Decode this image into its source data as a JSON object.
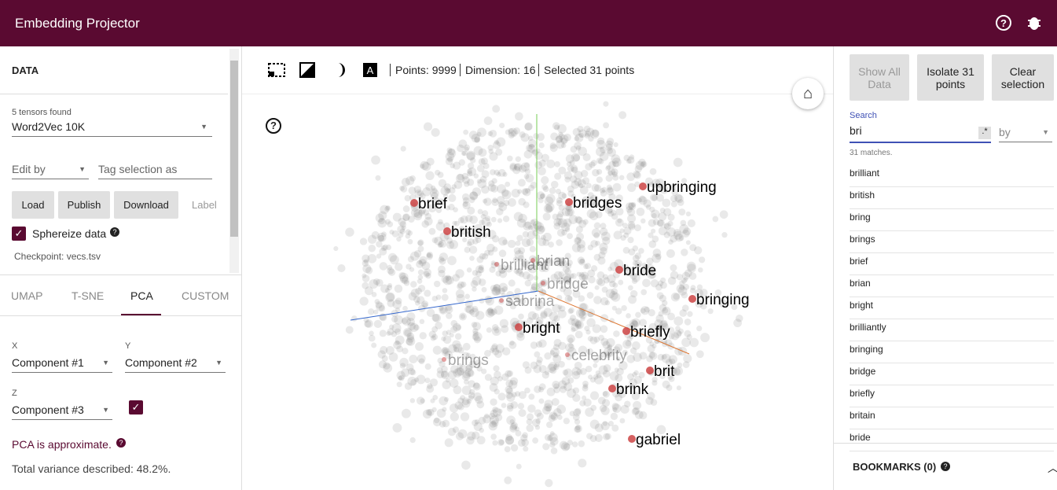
{
  "header": {
    "title": "Embedding Projector"
  },
  "data_panel": {
    "title": "DATA",
    "tensors_found": "5 tensors found",
    "tensor": "Word2Vec 10K",
    "edit_by": "Edit by",
    "tag_selection": "Tag selection as",
    "buttons": [
      "Load",
      "Publish",
      "Download"
    ],
    "label": "Label",
    "sphereize": "Sphereize data",
    "checkpoint": "Checkpoint: vecs.tsv"
  },
  "tabs": [
    "UMAP",
    "T-SNE",
    "PCA",
    "CUSTOM"
  ],
  "pca": {
    "x_label": "X",
    "x": "Component #1",
    "y_label": "Y",
    "y": "Component #2",
    "z_label": "Z",
    "z": "Component #3",
    "approx": "PCA is approximate.",
    "variance": "Total variance described: 48.2%."
  },
  "toolbar": {
    "points": "Points: 9999",
    "dimension": "Dimension: 16",
    "selected": "Selected 31 points"
  },
  "labels": [
    "brief",
    "british",
    "brilliant",
    "brian",
    "bridge",
    "bridges",
    "upbringing",
    "bride",
    "bringing",
    "sabrina",
    "bright",
    "briefly",
    "brings",
    "celebrity",
    "brit",
    "brink",
    "gabriel"
  ],
  "right_panel": {
    "buttons": [
      "Show All Data",
      "Isolate 31 points",
      "Clear selection"
    ],
    "search_label": "Search",
    "search_value": "bri",
    "regex": ".*",
    "by": "by",
    "matches": "31 matches.",
    "results": [
      "brilliant",
      "british",
      "bring",
      "brings",
      "brief",
      "brian",
      "bright",
      "brilliantly",
      "bringing",
      "bridge",
      "briefly",
      "britain",
      "bride"
    ],
    "bookmarks": "BOOKMARKS (0)"
  }
}
